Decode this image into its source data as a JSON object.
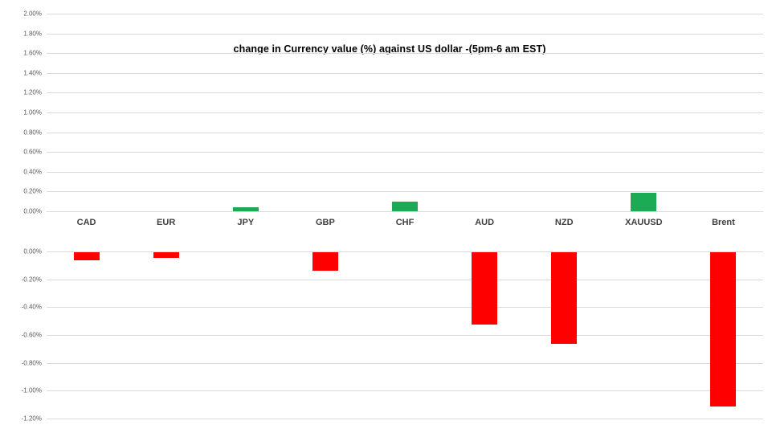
{
  "title": "change in Currency value (%)  against US dollar -(5pm-6 am EST)",
  "colors": {
    "positive_bar": "#1aab54",
    "negative_bar": "#ff0000",
    "gridline": "#d9d9d9",
    "tick_label": "#595959",
    "category_label": "#404040",
    "title": "#000000",
    "background": "#ffffff"
  },
  "chart_data": {
    "type": "bar",
    "title": "change in Currency value (%)  against US dollar -(5pm-6 am EST)",
    "xlabel": "",
    "ylabel": "",
    "units": "percent",
    "grid": true,
    "legend": false,
    "categories": [
      "CAD",
      "EUR",
      "JPY",
      "GBP",
      "CHF",
      "AUD",
      "NZD",
      "XAUUSD",
      "Brent"
    ],
    "values": [
      -0.06,
      -0.04,
      0.04,
      -0.13,
      0.1,
      -0.52,
      -0.66,
      0.19,
      -1.11
    ],
    "top_panel": {
      "description": "positive values panel",
      "axis_min": 0.0,
      "axis_max": 2.0,
      "step": 0.2,
      "tick_labels": [
        "2.00%",
        "1.80%",
        "1.60%",
        "1.40%",
        "1.20%",
        "1.00%",
        "0.80%",
        "0.60%",
        "0.40%",
        "0.20%",
        "0.00%"
      ]
    },
    "bottom_panel": {
      "description": "negative values panel",
      "axis_min": -1.2,
      "axis_max": 0.0,
      "step": 0.2,
      "tick_labels": [
        "0.00%",
        "-0.20%",
        "-0.40%",
        "-0.60%",
        "-0.80%",
        "-1.00%",
        "-1.20%"
      ]
    }
  }
}
